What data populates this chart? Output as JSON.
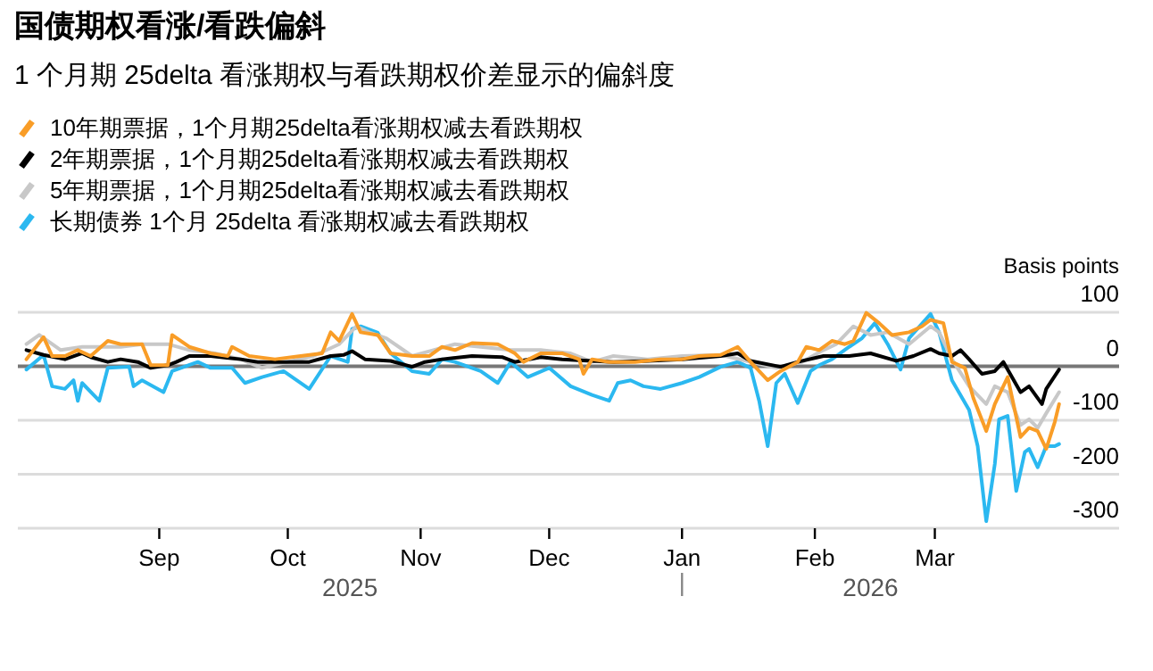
{
  "chart_data": {
    "type": "line",
    "title": "国债期权看涨/看跌偏斜",
    "subtitle": "1 个月期 25delta 看涨期权与看跌期权价差显示的偏斜度",
    "ylabel": "Basis points",
    "annotations": [
      "2025",
      "2026"
    ],
    "xlim": [
      "2025-07-30",
      "2026-04-13"
    ],
    "xticks": [
      {
        "value": "2025-09-01",
        "label": "Sep"
      },
      {
        "value": "2025-10-01",
        "label": "Oct"
      },
      {
        "value": "2025-11-01",
        "label": "Nov"
      },
      {
        "value": "2025-12-01",
        "label": "Dec"
      },
      {
        "value": "2026-01-01",
        "label": "Jan"
      },
      {
        "value": "2026-02-01",
        "label": "Feb"
      },
      {
        "value": "2026-03-01",
        "label": "Mar"
      }
    ],
    "ylim": [
      -300,
      100
    ],
    "yticks": [
      100,
      0,
      -100,
      -200,
      -300
    ],
    "grid": "y",
    "legend": "top left",
    "line_style": "solid",
    "series": [
      {
        "name": "10年期票据，1个月期25delta看涨期权减去看跌期权",
        "color": "#f99d27",
        "x": [
          "2025-08-01",
          "2025-08-05",
          "2025-08-07",
          "2025-08-10",
          "2025-08-13",
          "2025-08-16",
          "2025-08-20",
          "2025-08-23",
          "2025-08-28",
          "2025-08-30",
          "2025-09-03",
          "2025-09-04",
          "2025-09-08",
          "2025-09-13",
          "2025-09-17",
          "2025-09-18",
          "2025-09-22",
          "2025-09-28",
          "2025-10-04",
          "2025-10-09",
          "2025-10-11",
          "2025-10-13",
          "2025-10-16",
          "2025-10-18",
          "2025-10-22",
          "2025-10-25",
          "2025-10-30",
          "2025-11-03",
          "2025-11-06",
          "2025-11-09",
          "2025-11-13",
          "2025-11-19",
          "2025-11-23",
          "2025-11-25",
          "2025-11-29",
          "2025-12-04",
          "2025-12-08",
          "2025-12-09",
          "2025-12-11",
          "2025-12-15",
          "2025-12-21",
          "2025-12-27",
          "2026-01-01",
          "2026-01-05",
          "2026-01-10",
          "2026-01-14",
          "2026-01-17",
          "2026-01-21",
          "2026-01-24",
          "2026-01-28",
          "2026-01-30",
          "2026-02-02",
          "2026-02-05",
          "2026-02-08",
          "2026-02-10",
          "2026-02-13",
          "2026-02-16",
          "2026-02-19",
          "2026-02-23",
          "2026-02-26",
          "2026-02-28",
          "2026-03-03",
          "2026-03-05",
          "2026-03-08",
          "2026-03-10",
          "2026-03-13",
          "2026-03-15",
          "2026-03-18",
          "2026-03-21",
          "2026-03-23",
          "2026-03-25",
          "2026-03-27",
          "2026-03-29",
          "2026-03-30"
        ],
        "values": [
          13,
          54,
          19,
          19,
          30,
          19,
          47,
          41,
          41,
          2,
          2,
          58,
          36,
          24,
          19,
          36,
          19,
          13,
          19,
          24,
          63,
          47,
          97,
          63,
          58,
          24,
          19,
          19,
          36,
          30,
          43,
          41,
          24,
          8,
          24,
          24,
          13,
          -14,
          13,
          8,
          8,
          13,
          13,
          19,
          21,
          36,
          8,
          -26,
          -9,
          8,
          36,
          30,
          47,
          41,
          47,
          99,
          80,
          58,
          63,
          74,
          86,
          80,
          8,
          -3,
          -59,
          -120,
          -70,
          -20,
          -131,
          -114,
          -120,
          -153,
          -103,
          -70
        ]
      },
      {
        "name": "2年期票据，1个月期25delta看涨期权减去看跌期权",
        "color": "#000000",
        "x": [
          "2025-08-01",
          "2025-08-05",
          "2025-08-10",
          "2025-08-14",
          "2025-08-16",
          "2025-08-20",
          "2025-08-23",
          "2025-08-27",
          "2025-08-30",
          "2025-09-03",
          "2025-09-05",
          "2025-09-08",
          "2025-09-13",
          "2025-09-20",
          "2025-09-24",
          "2025-09-30",
          "2025-10-06",
          "2025-10-11",
          "2025-10-14",
          "2025-10-16",
          "2025-10-19",
          "2025-10-25",
          "2025-10-30",
          "2025-11-02",
          "2025-11-06",
          "2025-11-13",
          "2025-11-20",
          "2025-11-23",
          "2025-11-29",
          "2025-12-04",
          "2025-12-11",
          "2025-12-16",
          "2025-12-24",
          "2026-01-01",
          "2026-01-10",
          "2026-01-14",
          "2026-01-17",
          "2026-01-24",
          "2026-01-28",
          "2026-02-03",
          "2026-02-09",
          "2026-02-14",
          "2026-02-20",
          "2026-02-24",
          "2026-02-28",
          "2026-03-02",
          "2026-03-05",
          "2026-03-07",
          "2026-03-09",
          "2026-03-12",
          "2026-03-15",
          "2026-03-17",
          "2026-03-21",
          "2026-03-23",
          "2026-03-26",
          "2026-03-27",
          "2026-03-30"
        ],
        "values": [
          30,
          21,
          13,
          24,
          17,
          8,
          13,
          8,
          -3,
          2,
          8,
          19,
          19,
          13,
          8,
          8,
          8,
          19,
          21,
          28,
          13,
          10,
          -1,
          8,
          13,
          19,
          17,
          8,
          17,
          13,
          10,
          8,
          10,
          13,
          19,
          24,
          10,
          -1,
          8,
          19,
          19,
          24,
          10,
          19,
          32,
          24,
          19,
          30,
          13,
          -14,
          -9,
          8,
          -48,
          -37,
          -70,
          -42,
          -6
        ]
      },
      {
        "name": "5年期票据，1个月期25delta看涨期权减去看跌期权",
        "color": "#c8c8c8",
        "x": [
          "2025-08-01",
          "2025-08-04",
          "2025-08-09",
          "2025-08-14",
          "2025-08-23",
          "2025-08-28",
          "2025-09-03",
          "2025-09-08",
          "2025-09-14",
          "2025-09-20",
          "2025-09-25",
          "2025-10-01",
          "2025-10-07",
          "2025-10-13",
          "2025-10-17",
          "2025-10-20",
          "2025-10-24",
          "2025-10-30",
          "2025-11-04",
          "2025-11-09",
          "2025-11-15",
          "2025-11-22",
          "2025-11-29",
          "2025-12-06",
          "2025-12-11",
          "2025-12-16",
          "2025-12-24",
          "2026-01-01",
          "2026-01-10",
          "2026-01-17",
          "2026-01-23",
          "2026-01-29",
          "2026-02-03",
          "2026-02-06",
          "2026-02-10",
          "2026-02-14",
          "2026-02-18",
          "2026-02-23",
          "2026-02-28",
          "2026-03-02",
          "2026-03-05",
          "2026-03-09",
          "2026-03-13",
          "2026-03-15",
          "2026-03-18",
          "2026-03-21",
          "2026-03-23",
          "2026-03-25",
          "2026-03-27",
          "2026-03-30"
        ],
        "values": [
          41,
          58,
          30,
          36,
          36,
          41,
          41,
          30,
          24,
          13,
          -3,
          8,
          19,
          41,
          74,
          63,
          52,
          19,
          30,
          41,
          36,
          30,
          30,
          24,
          8,
          19,
          13,
          19,
          21,
          8,
          -3,
          8,
          30,
          41,
          74,
          58,
          63,
          41,
          74,
          63,
          13,
          -37,
          -70,
          -37,
          -48,
          -109,
          -98,
          -114,
          -87,
          -48
        ]
      },
      {
        "name": "长期债券 1个月 25delta 看涨期权减去看跌期权",
        "color": "#2bb8f0",
        "x": [
          "2025-08-01",
          "2025-08-05",
          "2025-08-07",
          "2025-08-10",
          "2025-08-12",
          "2025-08-13",
          "2025-08-14",
          "2025-08-18",
          "2025-08-20",
          "2025-08-25",
          "2025-08-26",
          "2025-08-28",
          "2025-09-02",
          "2025-09-04",
          "2025-09-10",
          "2025-09-13",
          "2025-09-18",
          "2025-09-21",
          "2025-09-25",
          "2025-09-30",
          "2025-10-06",
          "2025-10-11",
          "2025-10-15",
          "2025-10-16",
          "2025-10-18",
          "2025-10-22",
          "2025-10-25",
          "2025-10-30",
          "2025-11-03",
          "2025-11-06",
          "2025-11-09",
          "2025-11-15",
          "2025-11-19",
          "2025-11-22",
          "2025-11-26",
          "2025-12-01",
          "2025-12-06",
          "2025-12-11",
          "2025-12-15",
          "2025-12-17",
          "2025-12-20",
          "2025-12-23",
          "2025-12-27",
          "2026-01-01",
          "2026-01-05",
          "2026-01-10",
          "2026-01-14",
          "2026-01-17",
          "2026-01-19",
          "2026-01-21",
          "2026-01-23",
          "2026-01-25",
          "2026-01-28",
          "2026-01-31",
          "2026-02-02",
          "2026-02-05",
          "2026-02-09",
          "2026-02-12",
          "2026-02-15",
          "2026-02-18",
          "2026-02-21",
          "2026-02-23",
          "2026-02-28",
          "2026-03-02",
          "2026-03-05",
          "2026-03-09",
          "2026-03-11",
          "2026-03-13",
          "2026-03-15",
          "2026-03-16",
          "2026-03-18",
          "2026-03-20",
          "2026-03-22",
          "2026-03-23",
          "2026-03-25",
          "2026-03-27",
          "2026-03-29",
          "2026-03-30"
        ],
        "values": [
          -6,
          21,
          -37,
          -42,
          -26,
          -64,
          -31,
          -64,
          -3,
          -1,
          -37,
          -26,
          -48,
          -9,
          8,
          -3,
          -3,
          -31,
          -20,
          -9,
          -42,
          19,
          8,
          69,
          74,
          62,
          24,
          -9,
          -14,
          13,
          8,
          -9,
          -31,
          8,
          -20,
          -3,
          -37,
          -53,
          -64,
          -31,
          -26,
          -37,
          -42,
          -31,
          -20,
          -1,
          8,
          -3,
          -64,
          -148,
          -31,
          -14,
          -68,
          -9,
          2,
          13,
          36,
          52,
          80,
          41,
          -6,
          52,
          97,
          63,
          -26,
          -81,
          -148,
          -287,
          -181,
          -98,
          -92,
          -231,
          -159,
          -153,
          -187,
          -148,
          -148,
          -144
        ]
      }
    ]
  }
}
